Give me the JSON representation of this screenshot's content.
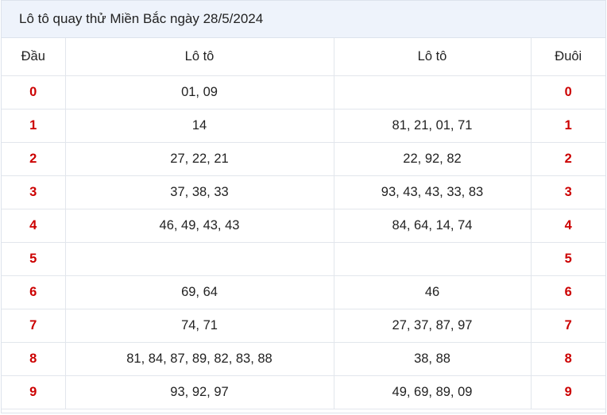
{
  "title": "Lô tô quay thử Miền Bắc ngày 28/5/2024",
  "headers": [
    "Đầu",
    "Lô tô",
    "Lô tô",
    "Đuôi"
  ],
  "rows": [
    {
      "dau": "0",
      "loto1": "01, 09",
      "loto2": "",
      "duoi": "0"
    },
    {
      "dau": "1",
      "loto1": "14",
      "loto2": "81, 21, 01, 71",
      "duoi": "1"
    },
    {
      "dau": "2",
      "loto1": "27, 22, 21",
      "loto2": "22, 92, 82",
      "duoi": "2"
    },
    {
      "dau": "3",
      "loto1": "37, 38, 33",
      "loto2": "93, 43, 43, 33, 83",
      "duoi": "3"
    },
    {
      "dau": "4",
      "loto1": "46, 49, 43, 43",
      "loto2": "84, 64, 14, 74",
      "duoi": "4"
    },
    {
      "dau": "5",
      "loto1": "",
      "loto2": "",
      "duoi": "5"
    },
    {
      "dau": "6",
      "loto1": "69, 64",
      "loto2": "46",
      "duoi": "6"
    },
    {
      "dau": "7",
      "loto1": "74, 71",
      "loto2": "27, 37, 87, 97",
      "duoi": "7"
    },
    {
      "dau": "8",
      "loto1": "81, 84, 87, 89, 82, 83, 88",
      "loto2": "38, 88",
      "duoi": "8"
    },
    {
      "dau": "9",
      "loto1": "93, 92, 97",
      "loto2": "49, 69, 89, 09",
      "duoi": "9"
    }
  ],
  "colors": {
    "accent": "#cc0000",
    "header_bg": "#eef3fb",
    "border": "#e2e6ec"
  }
}
